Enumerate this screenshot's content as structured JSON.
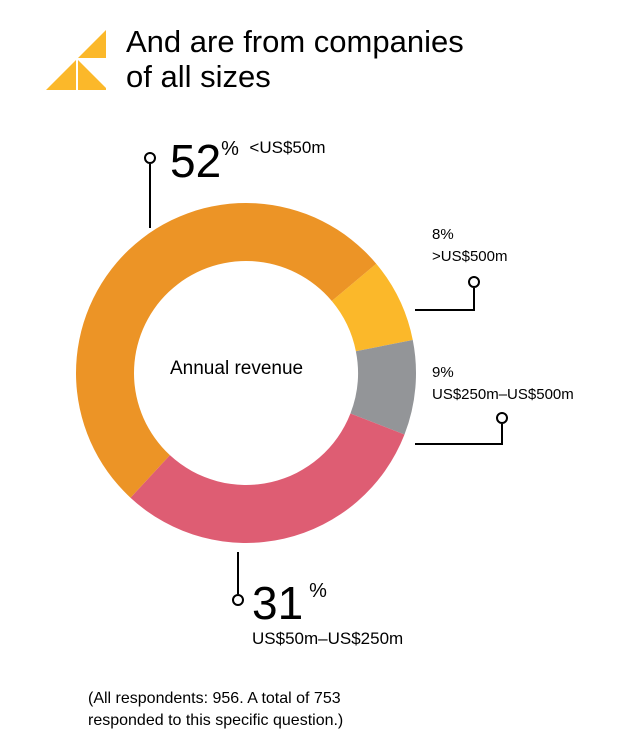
{
  "header": {
    "title_line1": "And are from companies",
    "title_line2": "of all sizes"
  },
  "chart_data": {
    "type": "pie",
    "subtype": "donut",
    "center_label": "Annual revenue",
    "categories": [
      "<US$50m",
      ">US$500m",
      "US$250m–US$500m",
      "US$50m–US$250m"
    ],
    "values": [
      52,
      8,
      9,
      31
    ],
    "labels": [
      "52",
      "8%",
      "9%",
      "31"
    ],
    "percent_sign": "%",
    "colors": [
      "#EC9426",
      "#FBB82A",
      "#939598",
      "#DE5D73"
    ]
  },
  "footnote": {
    "line1": "(All respondents: 956. A total of 753",
    "line2": "responded to this specific question.)"
  }
}
